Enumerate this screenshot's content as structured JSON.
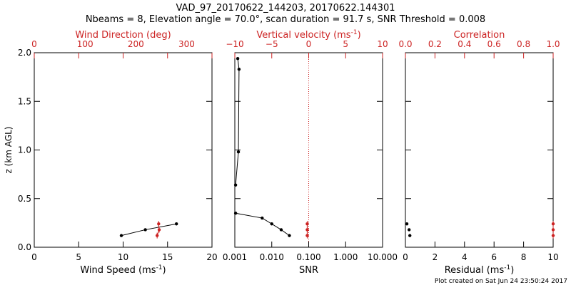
{
  "title_line1": "VAD_97_20170622_144203, 20170622.144301",
  "title_line2": "Nbeams = 8, Elevation angle = 70.0°, scan duration = 91.7 s, SNR Threshold = 0.008",
  "footer": "Plot created on Sat Jun 24 23:50:24 2017",
  "colors": {
    "axes": "#000000",
    "red": "#cc2222"
  },
  "chart_data": [
    {
      "type": "line",
      "panel": "left",
      "ylabel": "z (km AGL)",
      "ylim": [
        0.0,
        2.0
      ],
      "yticks": [
        "0.0",
        "0.5",
        "1.0",
        "1.5",
        "2.0"
      ],
      "bottom_axis": {
        "label": "Wind Speed (ms",
        "label_sup": "-1",
        "label_end": ")",
        "xlim": [
          0,
          20
        ],
        "ticks": [
          "0",
          "5",
          "10",
          "15",
          "20"
        ]
      },
      "top_axis": {
        "label": "Wind Direction (deg)",
        "xlim": [
          0,
          350
        ],
        "ticks": [
          "0",
          "100",
          "200",
          "300"
        ]
      },
      "series": [
        {
          "name": "Wind Speed",
          "axis": "bottom",
          "color": "black",
          "points": [
            {
              "x": 9.8,
              "y": 0.12
            },
            {
              "x": 12.5,
              "y": 0.18
            },
            {
              "x": 16.0,
              "y": 0.24
            }
          ]
        },
        {
          "name": "Wind Direction",
          "axis": "top",
          "color": "red",
          "points": [
            {
              "x": 242,
              "y": 0.12
            },
            {
              "x": 246,
              "y": 0.18
            },
            {
              "x": 245,
              "y": 0.24
            }
          ]
        }
      ]
    },
    {
      "type": "line",
      "panel": "middle",
      "ylim": [
        0.0,
        2.0
      ],
      "bottom_axis": {
        "label": "SNR",
        "scale": "log",
        "xlim": [
          0.001,
          10.0
        ],
        "ticks": [
          "0.001",
          "0.010",
          "0.100",
          "1.000",
          "10.000"
        ]
      },
      "top_axis": {
        "label": "Vertical velocity (ms",
        "label_sup": "-1",
        "label_end": ")",
        "xlim": [
          -10,
          10
        ],
        "ticks": [
          "−10",
          "−5",
          "0",
          "5",
          "10"
        ],
        "zero_line": 0
      },
      "series": [
        {
          "name": "SNR",
          "axis": "bottom",
          "color": "black",
          "points": [
            {
              "x": 0.03,
              "y": 0.12
            },
            {
              "x": 0.018,
              "y": 0.18
            },
            {
              "x": 0.01,
              "y": 0.24
            },
            {
              "x": 0.0055,
              "y": 0.3
            },
            {
              "x": 0.00105,
              "y": 0.35
            }
          ]
        },
        {
          "name": "SNR (upper)",
          "axis": "bottom",
          "color": "black",
          "points": [
            {
              "x": 0.00105,
              "y": 0.64
            },
            {
              "x": 0.00125,
              "y": 0.98
            },
            {
              "x": 0.0013,
              "y": 1.83
            },
            {
              "x": 0.0012,
              "y": 1.94
            }
          ]
        },
        {
          "name": "Vertical velocity",
          "axis": "top",
          "color": "red",
          "points": [
            {
              "x": -0.2,
              "y": 0.12
            },
            {
              "x": -0.2,
              "y": 0.18
            },
            {
              "x": -0.2,
              "y": 0.24
            }
          ]
        }
      ]
    },
    {
      "type": "scatter",
      "panel": "right",
      "ylim": [
        0.0,
        2.0
      ],
      "bottom_axis": {
        "label": "Residual (ms",
        "label_sup": "-1",
        "label_end": ")",
        "xlim": [
          0,
          10
        ],
        "ticks": [
          "0",
          "2",
          "4",
          "6",
          "8",
          "10"
        ]
      },
      "top_axis": {
        "label": "Correlation",
        "xlim": [
          0.0,
          1.0
        ],
        "ticks": [
          "0.0",
          "0.2",
          "0.4",
          "0.6",
          "0.8",
          "1.0"
        ]
      },
      "series": [
        {
          "name": "Residual",
          "axis": "bottom",
          "color": "black",
          "points": [
            {
              "x": 0.3,
              "y": 0.12
            },
            {
              "x": 0.25,
              "y": 0.18
            },
            {
              "x": 0.1,
              "y": 0.24
            }
          ]
        },
        {
          "name": "Correlation",
          "axis": "top",
          "color": "red",
          "points": [
            {
              "x": 1.0,
              "y": 0.12
            },
            {
              "x": 1.0,
              "y": 0.18
            },
            {
              "x": 1.0,
              "y": 0.24
            }
          ]
        }
      ]
    }
  ]
}
